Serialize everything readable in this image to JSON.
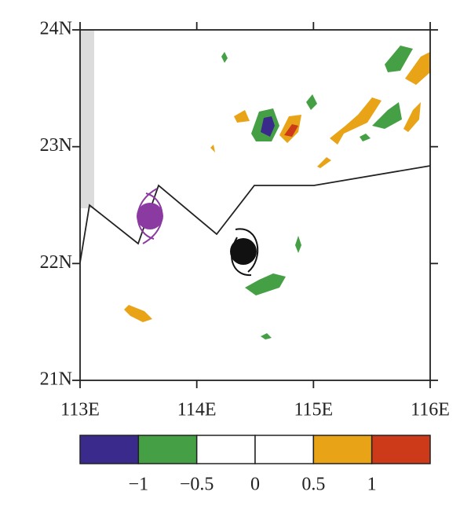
{
  "chart_data": {
    "type": "map",
    "xlim": [
      113,
      116
    ],
    "ylim": [
      21,
      24
    ],
    "xticks": [
      {
        "value": 113,
        "label": "113E"
      },
      {
        "value": 114,
        "label": "114E"
      },
      {
        "value": 115,
        "label": "115E"
      },
      {
        "value": 116,
        "label": "116E"
      }
    ],
    "yticks": [
      {
        "value": 21,
        "label": "21N"
      },
      {
        "value": 22,
        "label": "22N"
      },
      {
        "value": 23,
        "label": "23N"
      },
      {
        "value": 24,
        "label": "24N"
      }
    ],
    "colorbar": {
      "levels": [
        {
          "value": -1,
          "label": "−1"
        },
        {
          "value": -0.5,
          "label": "−0.5"
        },
        0,
        0.5,
        1
      ],
      "colors": [
        "#3a2a8c",
        "#45a045",
        "#ffffff",
        "#ffffff",
        "#e8a317",
        "#cc3a1a"
      ]
    }
  }
}
